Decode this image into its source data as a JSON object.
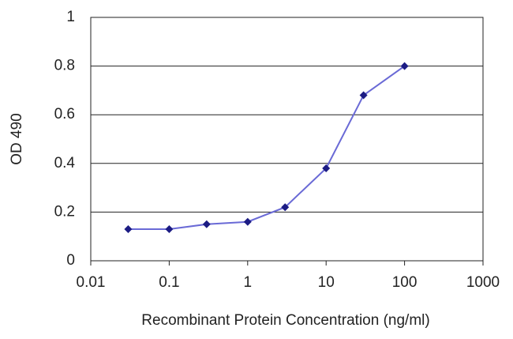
{
  "chart_data": {
    "type": "line",
    "xlabel": "Recombinant Protein Concentration (ng/ml)",
    "ylabel": "OD 490",
    "xscale": "log",
    "x": [
      0.03,
      0.1,
      0.3,
      1,
      3,
      10,
      30,
      100
    ],
    "series": [
      {
        "color": "#6a6ad6",
        "marker_color": "#1c1c84",
        "values": [
          0.13,
          0.13,
          0.15,
          0.16,
          0.22,
          0.38,
          0.68,
          0.8
        ]
      }
    ],
    "xlim": [
      0.01,
      1000
    ],
    "xticks": [
      0.01,
      0.1,
      1,
      10,
      100,
      1000
    ],
    "ylim": [
      0,
      1
    ],
    "yticks": [
      0,
      0.2,
      0.4,
      0.6,
      0.8,
      1
    ],
    "grid": true
  }
}
